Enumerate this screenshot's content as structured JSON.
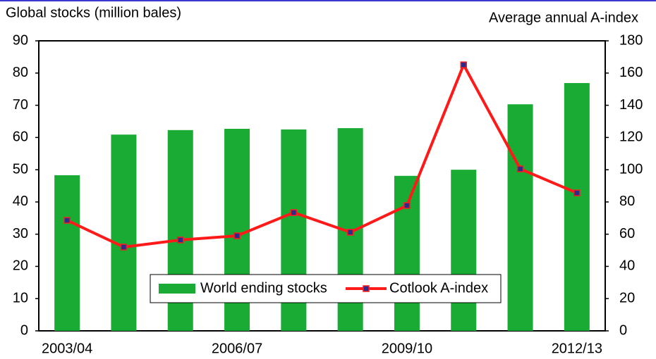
{
  "chart_data": {
    "type": "bar_line",
    "y_title": "Global stocks (million bales)",
    "y2_title": "Average annual A-index",
    "categories": [
      "2003/04",
      null,
      null,
      "2006/07",
      null,
      null,
      "2009/10",
      null,
      null,
      "2012/13"
    ],
    "series": [
      {
        "name": "World ending stocks",
        "type": "bar",
        "color": "#1aab35",
        "values": [
          48.3,
          60.9,
          62.3,
          62.7,
          62.5,
          62.9,
          48.1,
          50.0,
          70.3,
          76.9
        ]
      },
      {
        "name": "Cotlook A-index",
        "type": "line",
        "axis": "y2",
        "color": "#ff1a1a",
        "marker_color": "#2b2b8c",
        "values": [
          68.6,
          52.0,
          56.4,
          59.0,
          73.4,
          61.2,
          77.8,
          165.1,
          100.5,
          85.6
        ]
      }
    ],
    "ylim": [
      0,
      90
    ],
    "yticks": [
      0,
      10,
      20,
      30,
      40,
      50,
      60,
      70,
      80,
      90
    ],
    "y2lim": [
      0,
      180
    ],
    "y2ticks": [
      0,
      20,
      40,
      60,
      80,
      100,
      120,
      140,
      160,
      180
    ],
    "legend": "bottom"
  }
}
